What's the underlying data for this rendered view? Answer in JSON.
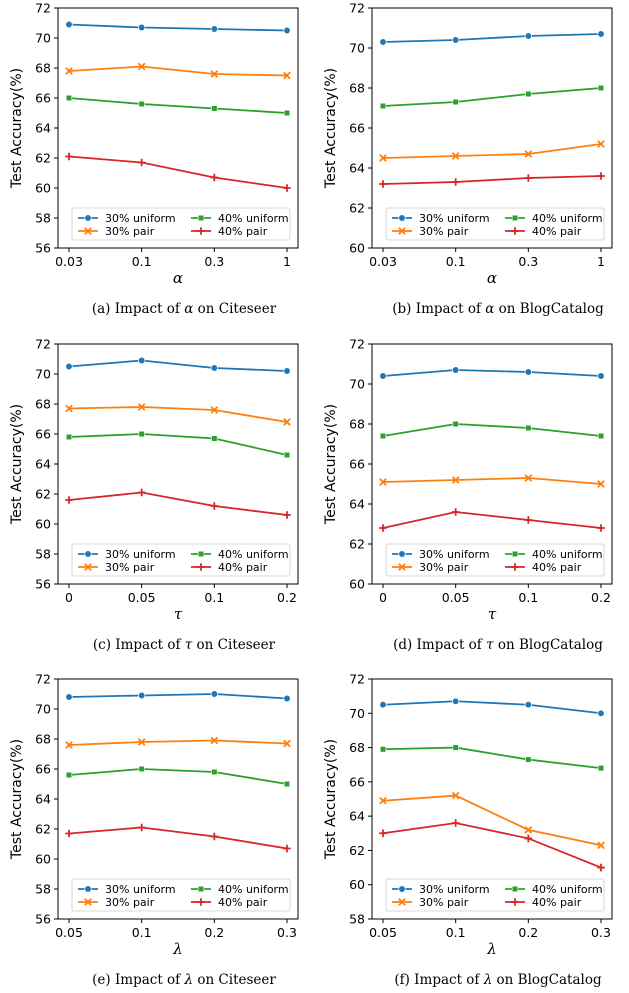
{
  "chart_data": [
    {
      "type": "line",
      "panel": "a",
      "caption_prefix": "(a)  Impact of ",
      "caption_symbol": "α",
      "caption_suffix": " on Citeseer",
      "xlabel": "α",
      "ylabel": "Test Accuracy(%)",
      "categories": [
        "0.03",
        "0.1",
        "0.3",
        "1"
      ],
      "ylim": [
        56,
        72
      ],
      "yticks": [
        56,
        58,
        60,
        62,
        64,
        66,
        68,
        70,
        72
      ],
      "legend_loc": "lower-left",
      "series": [
        {
          "name": "30% uniform",
          "color": "#1f77b4",
          "marker": "circle",
          "values": [
            70.9,
            70.7,
            70.6,
            70.5
          ]
        },
        {
          "name": "30% pair",
          "color": "#ff7f0e",
          "marker": "x",
          "values": [
            67.8,
            68.1,
            67.6,
            67.5
          ]
        },
        {
          "name": "40% uniform",
          "color": "#2ca02c",
          "marker": "square",
          "values": [
            66.0,
            65.6,
            65.3,
            65.0
          ]
        },
        {
          "name": "40% pair",
          "color": "#d62728",
          "marker": "plus",
          "values": [
            62.1,
            61.7,
            60.7,
            60.0
          ]
        }
      ]
    },
    {
      "type": "line",
      "panel": "b",
      "caption_prefix": "(b)  Impact of ",
      "caption_symbol": "α",
      "caption_suffix": " on BlogCatalog",
      "xlabel": "α",
      "ylabel": "Test Accuracy(%)",
      "categories": [
        "0.03",
        "0.1",
        "0.3",
        "1"
      ],
      "ylim": [
        60,
        72
      ],
      "yticks": [
        60,
        62,
        64,
        66,
        68,
        70,
        72
      ],
      "legend_loc": "lower-left",
      "series": [
        {
          "name": "30% uniform",
          "color": "#1f77b4",
          "marker": "circle",
          "values": [
            70.3,
            70.4,
            70.6,
            70.7
          ]
        },
        {
          "name": "30% pair",
          "color": "#ff7f0e",
          "marker": "x",
          "values": [
            64.5,
            64.6,
            64.7,
            65.2
          ]
        },
        {
          "name": "40% uniform",
          "color": "#2ca02c",
          "marker": "square",
          "values": [
            67.1,
            67.3,
            67.7,
            68.0
          ]
        },
        {
          "name": "40% pair",
          "color": "#d62728",
          "marker": "plus",
          "values": [
            63.2,
            63.3,
            63.5,
            63.6
          ]
        }
      ]
    },
    {
      "type": "line",
      "panel": "c",
      "caption_prefix": "(c)  Impact of ",
      "caption_symbol": "τ",
      "caption_suffix": " on Citeseer",
      "xlabel": "τ",
      "ylabel": "Test Accuracy(%)",
      "categories": [
        "0",
        "0.05",
        "0.1",
        "0.2"
      ],
      "ylim": [
        56,
        72
      ],
      "yticks": [
        56,
        58,
        60,
        62,
        64,
        66,
        68,
        70,
        72
      ],
      "legend_loc": "lower-left",
      "series": [
        {
          "name": "30% uniform",
          "color": "#1f77b4",
          "marker": "circle",
          "values": [
            70.5,
            70.9,
            70.4,
            70.2
          ]
        },
        {
          "name": "30% pair",
          "color": "#ff7f0e",
          "marker": "x",
          "values": [
            67.7,
            67.8,
            67.6,
            66.8
          ]
        },
        {
          "name": "40% uniform",
          "color": "#2ca02c",
          "marker": "square",
          "values": [
            65.8,
            66.0,
            65.7,
            64.6
          ]
        },
        {
          "name": "40% pair",
          "color": "#d62728",
          "marker": "plus",
          "values": [
            61.6,
            62.1,
            61.2,
            60.6
          ]
        }
      ]
    },
    {
      "type": "line",
      "panel": "d",
      "caption_prefix": "(d)  Impact of ",
      "caption_symbol": "τ",
      "caption_suffix": " on BlogCatalog",
      "xlabel": "τ",
      "ylabel": "Test Accuracy(%)",
      "categories": [
        "0",
        "0.05",
        "0.1",
        "0.2"
      ],
      "ylim": [
        60,
        72
      ],
      "yticks": [
        60,
        62,
        64,
        66,
        68,
        70,
        72
      ],
      "legend_loc": "lower-left",
      "series": [
        {
          "name": "30% uniform",
          "color": "#1f77b4",
          "marker": "circle",
          "values": [
            70.4,
            70.7,
            70.6,
            70.4
          ]
        },
        {
          "name": "30% pair",
          "color": "#ff7f0e",
          "marker": "x",
          "values": [
            65.1,
            65.2,
            65.3,
            65.0
          ]
        },
        {
          "name": "40% uniform",
          "color": "#2ca02c",
          "marker": "square",
          "values": [
            67.4,
            68.0,
            67.8,
            67.4
          ]
        },
        {
          "name": "40% pair",
          "color": "#d62728",
          "marker": "plus",
          "values": [
            62.8,
            63.6,
            63.2,
            62.8
          ]
        }
      ]
    },
    {
      "type": "line",
      "panel": "e",
      "caption_prefix": "(e)  Impact of ",
      "caption_symbol": "λ",
      "caption_suffix": " on Citeseer",
      "xlabel": "λ",
      "ylabel": "Test Accuracy(%)",
      "categories": [
        "0.05",
        "0.1",
        "0.2",
        "0.3"
      ],
      "ylim": [
        56,
        72
      ],
      "yticks": [
        56,
        58,
        60,
        62,
        64,
        66,
        68,
        70,
        72
      ],
      "legend_loc": "lower-left",
      "series": [
        {
          "name": "30% uniform",
          "color": "#1f77b4",
          "marker": "circle",
          "values": [
            70.8,
            70.9,
            71.0,
            70.7
          ]
        },
        {
          "name": "30% pair",
          "color": "#ff7f0e",
          "marker": "x",
          "values": [
            67.6,
            67.8,
            67.9,
            67.7
          ]
        },
        {
          "name": "40% uniform",
          "color": "#2ca02c",
          "marker": "square",
          "values": [
            65.6,
            66.0,
            65.8,
            65.0
          ]
        },
        {
          "name": "40% pair",
          "color": "#d62728",
          "marker": "plus",
          "values": [
            61.7,
            62.1,
            61.5,
            60.7
          ]
        }
      ]
    },
    {
      "type": "line",
      "panel": "f",
      "caption_prefix": "(f)  Impact of ",
      "caption_symbol": "λ",
      "caption_suffix": " on BlogCatalog",
      "xlabel": "λ",
      "ylabel": "Test Accuracy(%)",
      "categories": [
        "0.05",
        "0.1",
        "0.2",
        "0.3"
      ],
      "ylim": [
        58,
        72
      ],
      "yticks": [
        58,
        60,
        62,
        64,
        66,
        68,
        70,
        72
      ],
      "legend_loc": "lower-left",
      "series": [
        {
          "name": "30% uniform",
          "color": "#1f77b4",
          "marker": "circle",
          "values": [
            70.5,
            70.7,
            70.5,
            70.0
          ]
        },
        {
          "name": "30% pair",
          "color": "#ff7f0e",
          "marker": "x",
          "values": [
            64.9,
            65.2,
            63.2,
            62.3
          ]
        },
        {
          "name": "40% uniform",
          "color": "#2ca02c",
          "marker": "square",
          "values": [
            67.9,
            68.0,
            67.3,
            66.8
          ]
        },
        {
          "name": "40% pair",
          "color": "#d62728",
          "marker": "plus",
          "values": [
            63.0,
            63.6,
            62.7,
            61.0
          ]
        }
      ]
    }
  ]
}
